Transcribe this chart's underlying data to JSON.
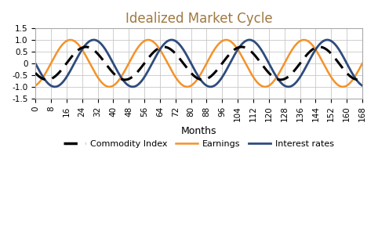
{
  "title": "Idealized Market Cycle",
  "title_color": "#A07840",
  "xlabel": "Months",
  "xlim": [
    0,
    168
  ],
  "ylim": [
    -1.5,
    1.5
  ],
  "xticks": [
    0,
    8,
    16,
    24,
    32,
    40,
    48,
    56,
    64,
    72,
    80,
    88,
    96,
    104,
    112,
    120,
    128,
    136,
    144,
    152,
    160,
    168
  ],
  "yticks": [
    -1.5,
    -1.0,
    -0.5,
    0.0,
    0.5,
    1.0,
    1.5
  ],
  "n_points": 2000,
  "x_max": 168,
  "period": 40,
  "earnings_phase_shift": 8,
  "commodity_phase_shift": 16,
  "interest_phase_shift": 20,
  "earnings_amplitude": 1.0,
  "commodity_amplitude": 0.7,
  "interest_amplitude": 1.0,
  "earnings_color": "#F4922A",
  "commodity_color": "#000000",
  "interest_color": "#2E4B7C",
  "linewidth_earnings": 1.8,
  "linewidth_commodity": 2.2,
  "linewidth_interest": 2.0,
  "legend_labels": [
    "Commodity Index",
    "Earnings",
    "Interest rates"
  ],
  "background_color": "#FFFFFF",
  "grid_color": "#C8C8C8",
  "title_fontsize": 12,
  "tick_fontsize": 7.5,
  "xlabel_fontsize": 9,
  "legend_fontsize": 8
}
